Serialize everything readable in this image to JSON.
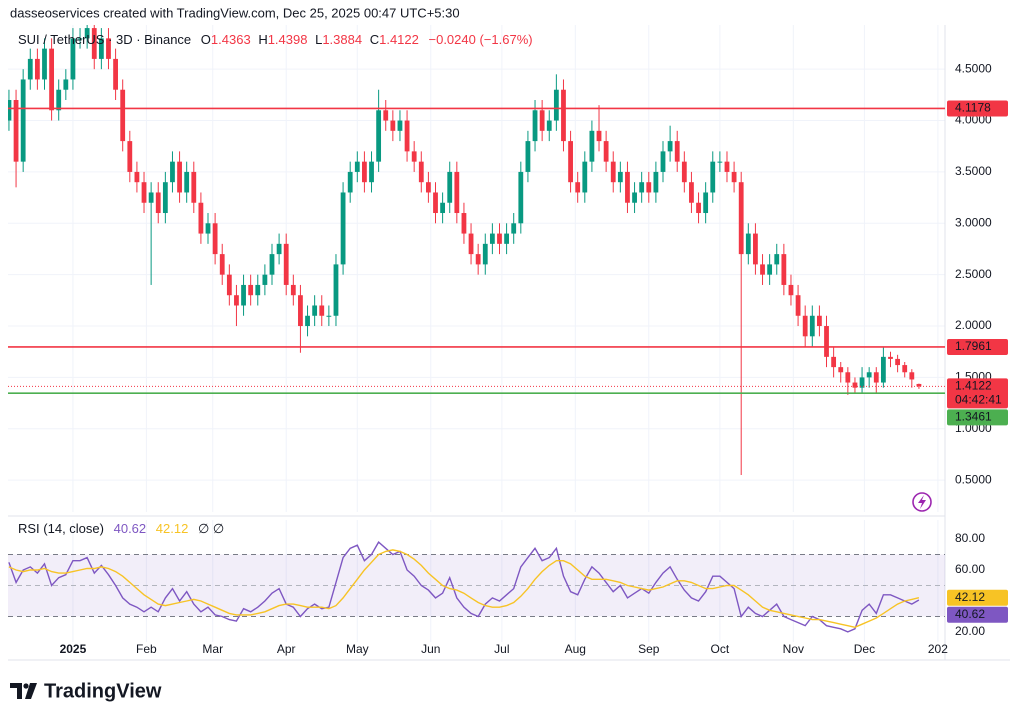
{
  "header": "dasseoservices created with TradingView.com, Dec 25, 2025 00:47 UTC+5:30",
  "footer": "TradingView",
  "chart_data": {
    "type": "candlestick",
    "title": "SUI / TetherUS · 3D · Binance",
    "legend": {
      "o_label": "O",
      "h_label": "H",
      "l_label": "L",
      "c_label": "C",
      "change": "−0.0240 (−1.67%)"
    },
    "countdown": "04:42:41",
    "up_color": "#089981",
    "down_color": "#f23645",
    "grid": true,
    "xlim": [
      -27.4,
      368
    ],
    "xticks": [
      {
        "value": 0,
        "label": "2025"
      },
      {
        "value": 31,
        "label": "Feb"
      },
      {
        "value": 59,
        "label": "Mar"
      },
      {
        "value": 90,
        "label": "Apr"
      },
      {
        "value": 120,
        "label": "May"
      },
      {
        "value": 151,
        "label": "Jun"
      },
      {
        "value": 181,
        "label": "Jul"
      },
      {
        "value": 212,
        "label": "Aug"
      },
      {
        "value": 243,
        "label": "Sep"
      },
      {
        "value": 273,
        "label": "Oct"
      },
      {
        "value": 304,
        "label": "Nov"
      },
      {
        "value": 334,
        "label": "Dec"
      },
      {
        "value": 365,
        "label": "202"
      }
    ],
    "ylim": [
      0.19,
      4.93
    ],
    "yticks": [
      {
        "value": 0.5,
        "label": "0.5000"
      },
      {
        "value": 1.0,
        "label": "1.0000"
      },
      {
        "value": 1.5,
        "label": "1.5000"
      },
      {
        "value": 2.0,
        "label": "2.0000"
      },
      {
        "value": 2.5,
        "label": "2.5000"
      },
      {
        "value": 3.0,
        "label": "3.0000"
      },
      {
        "value": 3.5,
        "label": "3.5000"
      },
      {
        "value": 4.0,
        "label": "4.0000"
      },
      {
        "value": 4.5,
        "label": "4.5000"
      }
    ],
    "levels": [
      {
        "value": 4.1178,
        "color": "#f23645"
      },
      {
        "value": 1.7961,
        "color": "#f23645"
      },
      {
        "value": 1.3461,
        "color": "#4caf50"
      }
    ],
    "x": [
      -27,
      -24,
      -21,
      -18,
      -15,
      -12,
      -9,
      -6,
      -3,
      0,
      3,
      6,
      9,
      12,
      15,
      18,
      21,
      24,
      27,
      30,
      33,
      36,
      39,
      42,
      45,
      48,
      51,
      54,
      57,
      60,
      63,
      66,
      69,
      72,
      75,
      78,
      81,
      84,
      87,
      90,
      93,
      96,
      99,
      102,
      105,
      108,
      111,
      114,
      117,
      120,
      123,
      126,
      129,
      132,
      135,
      138,
      141,
      144,
      147,
      150,
      153,
      156,
      159,
      162,
      165,
      168,
      171,
      174,
      177,
      180,
      183,
      186,
      189,
      192,
      195,
      198,
      201,
      204,
      207,
      210,
      213,
      216,
      219,
      222,
      225,
      228,
      231,
      234,
      237,
      240,
      243,
      246,
      249,
      252,
      255,
      258,
      261,
      264,
      267,
      270,
      273,
      276,
      279,
      282,
      285,
      288,
      291,
      294,
      297,
      300,
      303,
      306,
      309,
      312,
      315,
      318,
      321,
      324,
      327,
      330,
      333,
      336,
      339,
      342,
      345,
      348,
      351,
      354,
      357
    ],
    "open": [
      4.0,
      4.2,
      3.6,
      4.4,
      4.6,
      4.4,
      4.7,
      4.1,
      4.3,
      4.4,
      4.8,
      4.8,
      4.9,
      4.6,
      4.8,
      4.6,
      4.3,
      3.8,
      3.5,
      3.4,
      3.2,
      3.3,
      3.1,
      3.4,
      3.6,
      3.3,
      3.5,
      3.2,
      2.9,
      3.0,
      2.7,
      2.5,
      2.3,
      2.2,
      2.4,
      2.3,
      2.4,
      2.5,
      2.7,
      2.8,
      2.4,
      2.3,
      2.0,
      2.1,
      2.2,
      2.1,
      2.1,
      2.6,
      3.3,
      3.5,
      3.6,
      3.4,
      3.6,
      4.1,
      4.0,
      3.9,
      4.0,
      3.7,
      3.6,
      3.4,
      3.3,
      3.1,
      3.2,
      3.5,
      3.1,
      2.9,
      2.7,
      2.6,
      2.8,
      2.9,
      2.8,
      2.9,
      3.0,
      3.5,
      3.8,
      4.1,
      3.9,
      4.0,
      4.3,
      3.8,
      3.4,
      3.3,
      3.6,
      3.9,
      3.8,
      3.6,
      3.4,
      3.5,
      3.2,
      3.3,
      3.4,
      3.3,
      3.5,
      3.7,
      3.8,
      3.6,
      3.4,
      3.2,
      3.1,
      3.3,
      3.6,
      3.6,
      3.5,
      3.4,
      2.7,
      2.9,
      2.6,
      2.5,
      2.6,
      2.7,
      2.4,
      2.3,
      2.1,
      1.9,
      2.1,
      2.0,
      1.7,
      1.6,
      1.55,
      1.45,
      1.4,
      1.5,
      1.55,
      1.45,
      1.7,
      1.68,
      1.62,
      1.55,
      1.4363
    ],
    "high": [
      4.3,
      4.3,
      4.5,
      4.7,
      4.7,
      4.8,
      4.8,
      4.4,
      4.5,
      4.9,
      4.9,
      5.0,
      5.0,
      4.9,
      4.9,
      4.7,
      4.4,
      3.9,
      3.6,
      3.5,
      3.4,
      3.4,
      3.5,
      3.7,
      3.7,
      3.6,
      3.6,
      3.3,
      3.1,
      3.1,
      2.8,
      2.6,
      2.4,
      2.5,
      2.5,
      2.5,
      2.6,
      2.8,
      2.9,
      2.9,
      2.5,
      2.4,
      2.2,
      2.3,
      2.3,
      2.2,
      2.7,
      3.4,
      3.6,
      3.7,
      3.7,
      3.7,
      4.3,
      4.2,
      4.1,
      4.1,
      4.1,
      3.8,
      3.7,
      3.5,
      3.4,
      3.3,
      3.6,
      3.6,
      3.2,
      3.0,
      2.8,
      2.9,
      3.0,
      3.0,
      3.0,
      3.1,
      3.6,
      3.9,
      4.2,
      4.2,
      4.1,
      4.45,
      4.4,
      3.9,
      3.5,
      3.7,
      4.0,
      4.15,
      3.9,
      3.7,
      3.6,
      3.6,
      3.4,
      3.5,
      3.5,
      3.6,
      3.8,
      3.95,
      3.9,
      3.7,
      3.5,
      3.3,
      3.4,
      3.7,
      3.7,
      3.7,
      3.6,
      3.5,
      3.0,
      3.0,
      2.7,
      2.7,
      2.8,
      2.8,
      2.5,
      2.4,
      2.2,
      2.2,
      2.2,
      2.1,
      1.8,
      1.65,
      1.6,
      1.5,
      1.6,
      1.6,
      1.6,
      1.8,
      1.75,
      1.72,
      1.65,
      1.58,
      1.4398
    ],
    "low": [
      3.9,
      3.35,
      3.5,
      4.3,
      4.3,
      4.3,
      4.0,
      4.0,
      4.2,
      4.3,
      4.7,
      4.7,
      4.5,
      4.5,
      4.5,
      4.2,
      3.7,
      3.4,
      3.3,
      3.1,
      2.4,
      3.0,
      3.0,
      3.3,
      3.2,
      3.2,
      3.1,
      2.8,
      2.8,
      2.6,
      2.4,
      2.2,
      2.0,
      2.1,
      2.2,
      2.2,
      2.3,
      2.4,
      2.6,
      2.3,
      2.2,
      1.74,
      1.9,
      2.0,
      2.0,
      2.0,
      2.0,
      2.5,
      3.2,
      3.4,
      3.3,
      3.3,
      3.5,
      3.9,
      3.8,
      3.8,
      3.6,
      3.5,
      3.3,
      3.2,
      3.0,
      3.0,
      3.1,
      3.0,
      2.8,
      2.6,
      2.5,
      2.5,
      2.7,
      2.7,
      2.7,
      2.8,
      2.9,
      3.4,
      3.7,
      3.8,
      3.8,
      3.9,
      3.7,
      3.3,
      3.2,
      3.2,
      3.5,
      3.7,
      3.5,
      3.3,
      3.3,
      3.1,
      3.1,
      3.2,
      3.2,
      3.2,
      3.4,
      3.6,
      3.5,
      3.3,
      3.1,
      3.0,
      3.0,
      3.2,
      3.5,
      3.4,
      3.3,
      0.55,
      2.6,
      2.5,
      2.4,
      2.4,
      2.5,
      2.3,
      2.2,
      2.0,
      1.8,
      1.8,
      1.9,
      1.6,
      1.5,
      1.45,
      1.33,
      1.35,
      1.35,
      1.4,
      1.35,
      1.4,
      1.6,
      1.55,
      1.5,
      1.4,
      1.3884
    ],
    "close": [
      4.2,
      3.6,
      4.4,
      4.6,
      4.4,
      4.7,
      4.1,
      4.3,
      4.4,
      4.8,
      4.8,
      4.9,
      4.6,
      4.8,
      4.6,
      4.3,
      3.8,
      3.5,
      3.4,
      3.2,
      3.3,
      3.1,
      3.4,
      3.6,
      3.3,
      3.5,
      3.2,
      2.9,
      3.0,
      2.7,
      2.5,
      2.3,
      2.2,
      2.4,
      2.3,
      2.4,
      2.5,
      2.7,
      2.8,
      2.4,
      2.3,
      2.0,
      2.1,
      2.2,
      2.1,
      2.1,
      2.6,
      3.3,
      3.5,
      3.6,
      3.4,
      3.6,
      4.1,
      4.0,
      3.9,
      4.0,
      3.7,
      3.6,
      3.4,
      3.3,
      3.1,
      3.2,
      3.5,
      3.1,
      2.9,
      2.7,
      2.6,
      2.8,
      2.9,
      2.8,
      2.9,
      3.0,
      3.5,
      3.8,
      4.1,
      3.9,
      4.0,
      4.3,
      3.8,
      3.4,
      3.3,
      3.6,
      3.9,
      3.8,
      3.6,
      3.4,
      3.5,
      3.2,
      3.3,
      3.4,
      3.3,
      3.5,
      3.7,
      3.8,
      3.6,
      3.4,
      3.2,
      3.1,
      3.3,
      3.6,
      3.6,
      3.5,
      3.4,
      2.7,
      2.9,
      2.6,
      2.5,
      2.6,
      2.7,
      2.4,
      2.3,
      2.1,
      1.9,
      2.1,
      2.0,
      1.7,
      1.6,
      1.55,
      1.45,
      1.4,
      1.5,
      1.55,
      1.45,
      1.7,
      1.68,
      1.62,
      1.55,
      1.48,
      1.4122
    ],
    "indicator": {
      "title": "RSI (14, close)",
      "extra": "∅ ∅",
      "ylim": [
        13.5,
        92.3
      ],
      "yticks": [
        {
          "value": 80,
          "label": "80.00"
        },
        {
          "value": 60,
          "label": "60.00"
        },
        {
          "value": 20,
          "label": "20.00"
        }
      ],
      "bands": [
        30,
        70
      ],
      "midline": 50,
      "band_color": "#7e57c2",
      "series": [
        {
          "color": "#7e57c2",
          "values": [
            65,
            52,
            60,
            62,
            58,
            64,
            50,
            55,
            57,
            66,
            66,
            68,
            58,
            63,
            57,
            50,
            42,
            38,
            36,
            33,
            36,
            33,
            42,
            48,
            40,
            46,
            38,
            33,
            36,
            31,
            30,
            28,
            27,
            35,
            33,
            36,
            40,
            45,
            48,
            38,
            36,
            30,
            35,
            38,
            35,
            36,
            52,
            68,
            74,
            76,
            66,
            70,
            78,
            74,
            70,
            72,
            60,
            56,
            50,
            47,
            42,
            45,
            55,
            42,
            36,
            32,
            30,
            38,
            42,
            40,
            44,
            48,
            62,
            68,
            74,
            66,
            68,
            74,
            56,
            46,
            44,
            54,
            62,
            58,
            52,
            46,
            50,
            42,
            45,
            48,
            45,
            52,
            58,
            62,
            54,
            47,
            42,
            40,
            46,
            56,
            56,
            52,
            48,
            30,
            36,
            32,
            30,
            34,
            38,
            30,
            28,
            26,
            24,
            30,
            28,
            24,
            23,
            22,
            20,
            22,
            34,
            38,
            32,
            44,
            44,
            42,
            40,
            38,
            40.62
          ]
        },
        {
          "color": "#f7c325",
          "values": [
            62,
            60,
            59,
            60,
            60,
            61,
            59,
            58,
            58,
            59,
            60,
            61,
            61,
            62,
            61,
            59,
            56,
            52,
            48,
            44,
            41,
            38,
            37,
            38,
            39,
            40,
            41,
            40,
            38,
            36,
            34,
            32,
            31,
            31,
            31,
            32,
            33,
            35,
            37,
            38,
            38,
            37,
            36,
            36,
            36,
            35,
            37,
            42,
            48,
            54,
            60,
            65,
            70,
            72,
            73,
            72,
            70,
            67,
            63,
            58,
            54,
            50,
            48,
            47,
            45,
            42,
            39,
            37,
            36,
            36,
            37,
            39,
            43,
            48,
            54,
            59,
            63,
            66,
            66,
            64,
            60,
            56,
            54,
            54,
            54,
            53,
            52,
            50,
            49,
            48,
            47,
            48,
            49,
            51,
            53,
            53,
            52,
            50,
            48,
            48,
            49,
            50,
            50,
            47,
            44,
            40,
            36,
            34,
            33,
            32,
            31,
            30,
            29,
            28,
            28,
            27,
            26,
            25,
            24,
            23,
            25,
            27,
            29,
            32,
            35,
            38,
            40,
            41,
            42.12
          ]
        }
      ]
    }
  }
}
